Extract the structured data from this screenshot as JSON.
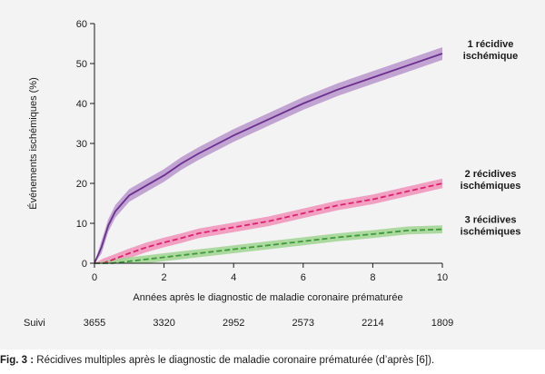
{
  "caption": {
    "label": "Fig. 3 :",
    "text": " Récidives multiples après le diagnostic de maladie coronaire prématurée (d’après [6])."
  },
  "followup": {
    "label": "Suivi",
    "values": [
      "3655",
      "3320",
      "2952",
      "2573",
      "2214",
      "1809"
    ]
  },
  "chart_data": {
    "type": "line",
    "xlabel": "Années après le diagnostic de maladie coronaire prématurée",
    "ylabel": "Événements ischémiques (%)",
    "xlim": [
      0,
      10
    ],
    "ylim": [
      0,
      60
    ],
    "xticks": [
      0,
      2,
      4,
      6,
      8,
      10
    ],
    "yticks": [
      0,
      10,
      20,
      30,
      40,
      50,
      60
    ],
    "grid": false,
    "series": [
      {
        "name": [
          "1 récidive",
          "ischémique"
        ],
        "color": "#6b2f8f",
        "band_color": "#b895cc",
        "style": "solid",
        "x": [
          0,
          0.2,
          0.4,
          0.6,
          0.8,
          1,
          1.5,
          2,
          2.5,
          3,
          4,
          5,
          6,
          7,
          8,
          9,
          10
        ],
        "y": [
          0,
          4,
          9.5,
          13,
          15,
          17,
          19.5,
          22,
          25,
          27.5,
          32,
          36,
          40,
          43.5,
          46.5,
          49.5,
          52.5
        ],
        "band": 1.6
      },
      {
        "name": [
          "2 récidives",
          "ischémiques"
        ],
        "color": "#e0206e",
        "band_color": "#f090b8",
        "style": "dashed",
        "x": [
          0,
          0.25,
          0.5,
          1,
          1.5,
          2,
          2.5,
          3,
          4,
          5,
          6,
          7,
          8,
          9,
          10
        ],
        "y": [
          0,
          0,
          0.8,
          2.5,
          4,
          5.2,
          6.3,
          7.5,
          9,
          10.5,
          12.5,
          14.5,
          16,
          18,
          20
        ],
        "band": 1.2
      },
      {
        "name": [
          "3 récidives",
          "ischémiques"
        ],
        "color": "#3f9a3a",
        "band_color": "#9fd48f",
        "style": "dashed",
        "x": [
          0,
          0.5,
          1,
          1.5,
          2,
          2.5,
          3,
          4,
          5,
          6,
          7,
          8,
          9,
          10
        ],
        "y": [
          0,
          0,
          0.5,
          1,
          1.5,
          2,
          2.5,
          3.5,
          4.5,
          5.5,
          6.5,
          7.3,
          8.2,
          8.5
        ],
        "band": 1.0
      }
    ]
  }
}
